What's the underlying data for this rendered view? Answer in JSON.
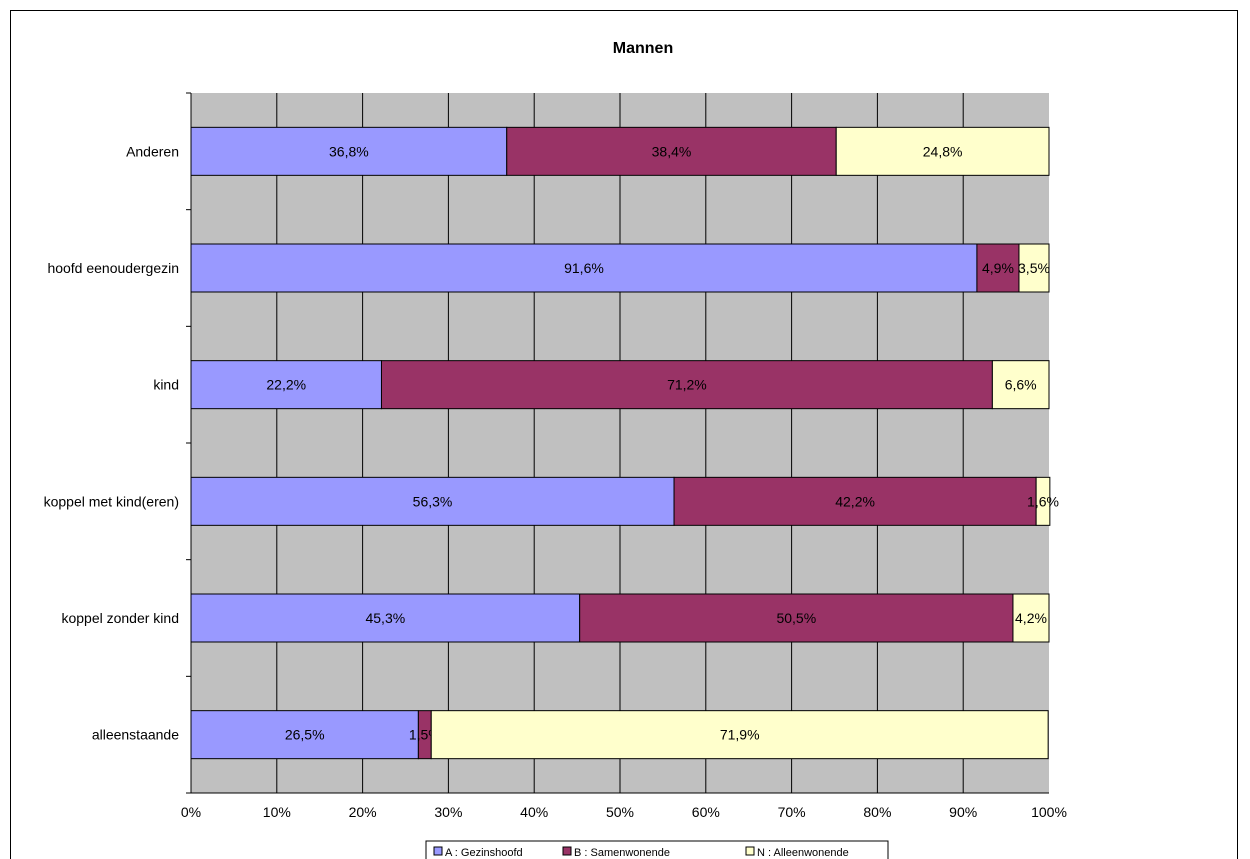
{
  "chart_data": {
    "type": "bar",
    "orientation": "horizontal",
    "stacked": true,
    "title": "Mannen",
    "categories": [
      "Anderen",
      "hoofd eenoudergezin",
      "kind",
      "koppel met kind(eren)",
      "koppel zonder kind",
      "alleenstaande"
    ],
    "series": [
      {
        "name": "A : Gezinshoofd",
        "color": "#9999ff",
        "values": [
          36.8,
          91.6,
          22.2,
          56.3,
          45.3,
          26.5
        ],
        "labels": [
          "36,8%",
          "91,6%",
          "22,2%",
          "56,3%",
          "45,3%",
          "26,5%"
        ]
      },
      {
        "name": "B : Samenwonende",
        "color": "#993366",
        "values": [
          38.4,
          4.9,
          71.2,
          42.2,
          50.5,
          1.5
        ],
        "labels": [
          "38,4%",
          "4,9%",
          "71,2%",
          "42,2%",
          "50,5%",
          "1,5%"
        ]
      },
      {
        "name": "N : Alleenwonende",
        "color": "#ffffcc",
        "values": [
          24.8,
          3.5,
          6.6,
          1.6,
          4.2,
          71.9
        ],
        "labels": [
          "24,8%",
          "3,5%",
          "6,6%",
          "1,6%",
          "4,2%",
          "71,9%"
        ]
      }
    ],
    "xlim": [
      0,
      100
    ],
    "xticks": [
      "0%",
      "10%",
      "20%",
      "30%",
      "40%",
      "50%",
      "60%",
      "70%",
      "80%",
      "90%",
      "100%"
    ],
    "grid": true,
    "plot_background": "#c0c0c0",
    "legend_position": "bottom"
  }
}
